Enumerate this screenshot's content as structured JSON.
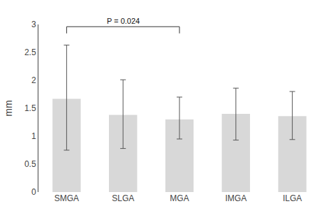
{
  "chart_data": {
    "type": "bar",
    "categories": [
      "SMGA",
      "SLGA",
      "MGA",
      "IMGA",
      "ILGA"
    ],
    "values": [
      1.67,
      1.38,
      1.3,
      1.4,
      1.36
    ],
    "err_low": [
      0.92,
      0.6,
      0.35,
      0.47,
      0.42
    ],
    "err_high": [
      0.96,
      0.63,
      0.4,
      0.46,
      0.44
    ],
    "color": "#d8d8d8",
    "ylabel": "mm",
    "ylim": [
      0,
      3
    ],
    "yticks": [
      0,
      0.5,
      1,
      1.5,
      2,
      2.5,
      3
    ],
    "grid": false,
    "annotations": [
      {
        "text": "P = 0.024",
        "from": "SMGA",
        "to": "MGA",
        "y": 2.96,
        "drop": 0.12
      }
    ]
  }
}
